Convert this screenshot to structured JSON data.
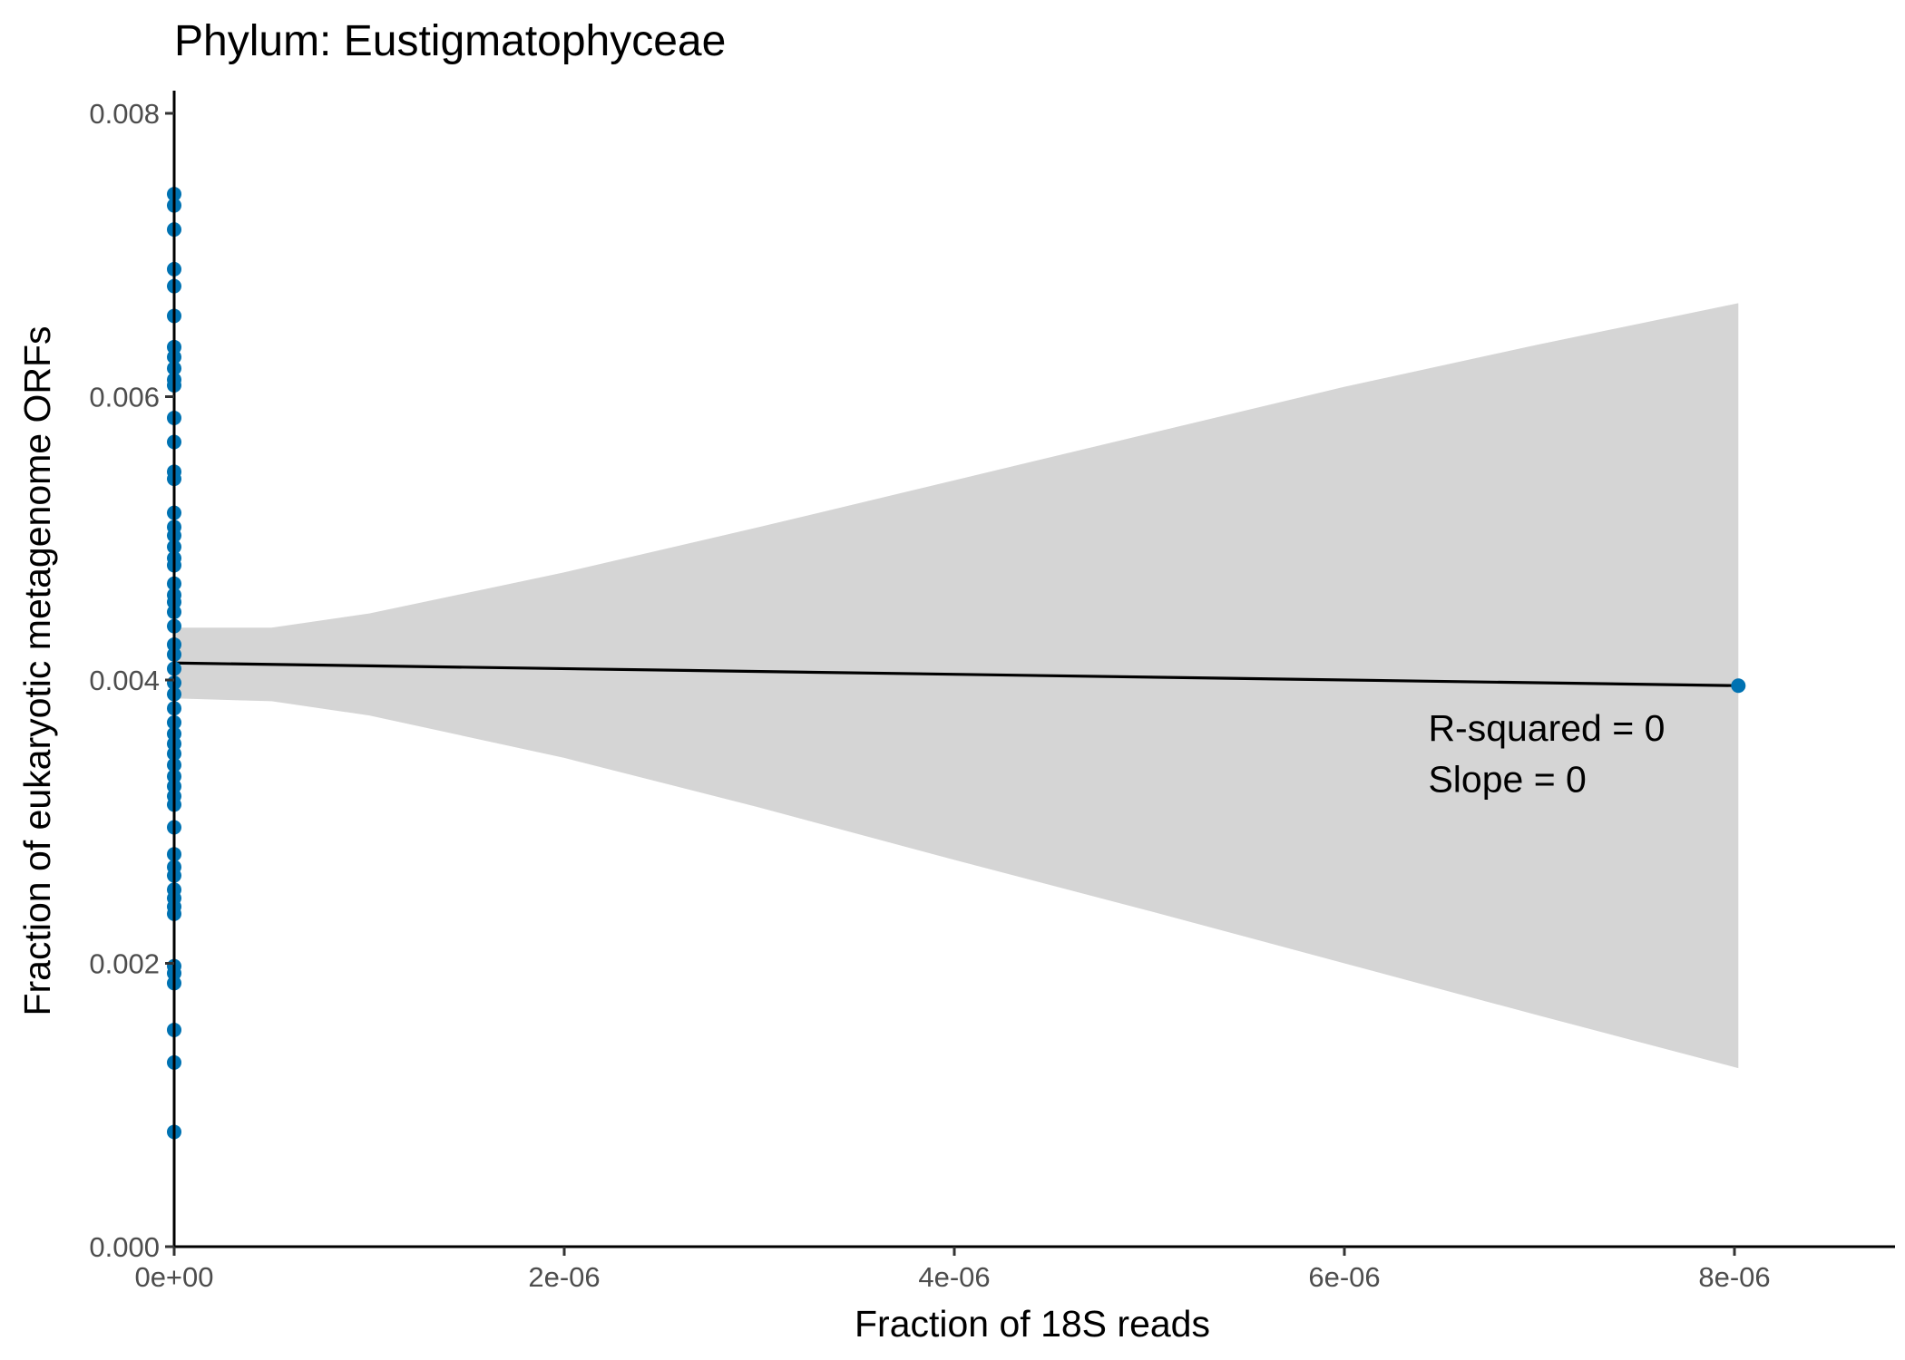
{
  "chart_data": {
    "type": "scatter",
    "title": "Phylum:  Eustigmatophyceae",
    "xlabel": "Fraction of 18S reads",
    "ylabel": "Fraction of eukaryotic metagenome ORFs",
    "xlim": [
      0,
      8.8e-06
    ],
    "ylim": [
      0,
      0.0081
    ],
    "x_ticks": [
      0,
      2e-06,
      4e-06,
      6e-06,
      8e-06
    ],
    "x_tick_labels": [
      "0e+00",
      "2e-06",
      "4e-06",
      "6e-06",
      "8e-06"
    ],
    "y_ticks": [
      0,
      0.002,
      0.004,
      0.006,
      0.008
    ],
    "y_tick_labels": [
      "0.000",
      "0.002",
      "0.004",
      "0.006",
      "0.008"
    ],
    "grid": false,
    "point_color": "#0072B2",
    "ribbon_color": "#d5d5d5",
    "line_color": "#000000",
    "points": [
      {
        "x": 0,
        "y": 0.00743
      },
      {
        "x": 0,
        "y": 0.00735
      },
      {
        "x": 0,
        "y": 0.00718
      },
      {
        "x": 0,
        "y": 0.0069
      },
      {
        "x": 0,
        "y": 0.00678
      },
      {
        "x": 0,
        "y": 0.00657
      },
      {
        "x": 0,
        "y": 0.00635
      },
      {
        "x": 0,
        "y": 0.00628
      },
      {
        "x": 0,
        "y": 0.0062
      },
      {
        "x": 0,
        "y": 0.00612
      },
      {
        "x": 0,
        "y": 0.00608
      },
      {
        "x": 0,
        "y": 0.00585
      },
      {
        "x": 0,
        "y": 0.00568
      },
      {
        "x": 0,
        "y": 0.00547
      },
      {
        "x": 0,
        "y": 0.00542
      },
      {
        "x": 0,
        "y": 0.00518
      },
      {
        "x": 0,
        "y": 0.00508
      },
      {
        "x": 0,
        "y": 0.00502
      },
      {
        "x": 0,
        "y": 0.00494
      },
      {
        "x": 0,
        "y": 0.00486
      },
      {
        "x": 0,
        "y": 0.00481
      },
      {
        "x": 0,
        "y": 0.00468
      },
      {
        "x": 0,
        "y": 0.0046
      },
      {
        "x": 0,
        "y": 0.00455
      },
      {
        "x": 0,
        "y": 0.00448
      },
      {
        "x": 0,
        "y": 0.00438
      },
      {
        "x": 0,
        "y": 0.00425
      },
      {
        "x": 0,
        "y": 0.00418
      },
      {
        "x": 0,
        "y": 0.00408
      },
      {
        "x": 0,
        "y": 0.00398
      },
      {
        "x": 0,
        "y": 0.0039
      },
      {
        "x": 0,
        "y": 0.0038
      },
      {
        "x": 0,
        "y": 0.0037
      },
      {
        "x": 0,
        "y": 0.00362
      },
      {
        "x": 0,
        "y": 0.00355
      },
      {
        "x": 0,
        "y": 0.00348
      },
      {
        "x": 0,
        "y": 0.0034
      },
      {
        "x": 0,
        "y": 0.00332
      },
      {
        "x": 0,
        "y": 0.00325
      },
      {
        "x": 0,
        "y": 0.00318
      },
      {
        "x": 0,
        "y": 0.00312
      },
      {
        "x": 0,
        "y": 0.00296
      },
      {
        "x": 0,
        "y": 0.00277
      },
      {
        "x": 0,
        "y": 0.00268
      },
      {
        "x": 0,
        "y": 0.00262
      },
      {
        "x": 0,
        "y": 0.00252
      },
      {
        "x": 0,
        "y": 0.00246
      },
      {
        "x": 0,
        "y": 0.0024
      },
      {
        "x": 0,
        "y": 0.00235
      },
      {
        "x": 0,
        "y": 0.00198
      },
      {
        "x": 0,
        "y": 0.00193
      },
      {
        "x": 0,
        "y": 0.00186
      },
      {
        "x": 0,
        "y": 0.00153
      },
      {
        "x": 0,
        "y": 0.0013
      },
      {
        "x": 0,
        "y": 0.00081
      },
      {
        "x": 8.02e-06,
        "y": 0.00396
      }
    ],
    "fit_line": {
      "x": [
        0,
        8.02e-06
      ],
      "y": [
        0.00412,
        0.00396
      ]
    },
    "confidence_band": {
      "x": [
        0,
        5e-07,
        1e-06,
        2e-06,
        3e-06,
        4e-06,
        5e-06,
        6e-06,
        7e-06,
        8.02e-06
      ],
      "lower": [
        0.00387,
        0.00385,
        0.00375,
        0.00345,
        0.0031,
        0.00273,
        0.00237,
        0.002,
        0.00163,
        0.00126
      ],
      "upper": [
        0.00437,
        0.00437,
        0.00447,
        0.00476,
        0.00508,
        0.00541,
        0.00574,
        0.00607,
        0.00637,
        0.00666
      ]
    },
    "annotations": [
      {
        "text": "R-squared =  0",
        "x": 6.43e-06,
        "y": 0.00357
      },
      {
        "text": "Slope =  0",
        "x": 6.43e-06,
        "y": 0.00321
      }
    ]
  }
}
